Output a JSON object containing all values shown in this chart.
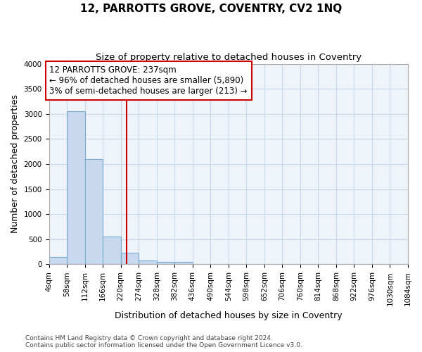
{
  "title": "12, PARROTTS GROVE, COVENTRY, CV2 1NQ",
  "subtitle": "Size of property relative to detached houses in Coventry",
  "xlabel": "Distribution of detached houses by size in Coventry",
  "ylabel": "Number of detached properties",
  "bar_color": "#c8d8ee",
  "bar_edge_color": "#7aaad0",
  "bar_heights": [
    150,
    3050,
    2100,
    550,
    230,
    80,
    50,
    50,
    0,
    0,
    0,
    0,
    0,
    0,
    0,
    0,
    0,
    0,
    0,
    0
  ],
  "bin_edges": [
    4,
    58,
    112,
    166,
    220,
    274,
    328,
    382,
    436,
    490,
    544,
    598,
    652,
    706,
    760,
    814,
    868,
    922,
    976,
    1030,
    1084
  ],
  "x_tick_labels": [
    "4sqm",
    "58sqm",
    "112sqm",
    "166sqm",
    "220sqm",
    "274sqm",
    "328sqm",
    "382sqm",
    "436sqm",
    "490sqm",
    "544sqm",
    "598sqm",
    "652sqm",
    "706sqm",
    "760sqm",
    "814sqm",
    "868sqm",
    "922sqm",
    "976sqm",
    "1030sqm",
    "1084sqm"
  ],
  "ylim": [
    0,
    4000
  ],
  "yticks": [
    0,
    500,
    1000,
    1500,
    2000,
    2500,
    3000,
    3500,
    4000
  ],
  "property_line_x": 237,
  "property_line_color": "#cc0000",
  "annotation_text": "12 PARROTTS GROVE: 237sqm\n← 96% of detached houses are smaller (5,890)\n3% of semi-detached houses are larger (213) →",
  "annotation_box_color": "#cc0000",
  "grid_color": "#c8d8e8",
  "background_color": "#eef4fa",
  "footer_line1": "Contains HM Land Registry data © Crown copyright and database right 2024.",
  "footer_line2": "Contains public sector information licensed under the Open Government Licence v3.0.",
  "title_fontsize": 11,
  "subtitle_fontsize": 9.5,
  "axis_label_fontsize": 9,
  "tick_fontsize": 7.5,
  "annotation_fontsize": 8.5,
  "footer_fontsize": 6.5
}
